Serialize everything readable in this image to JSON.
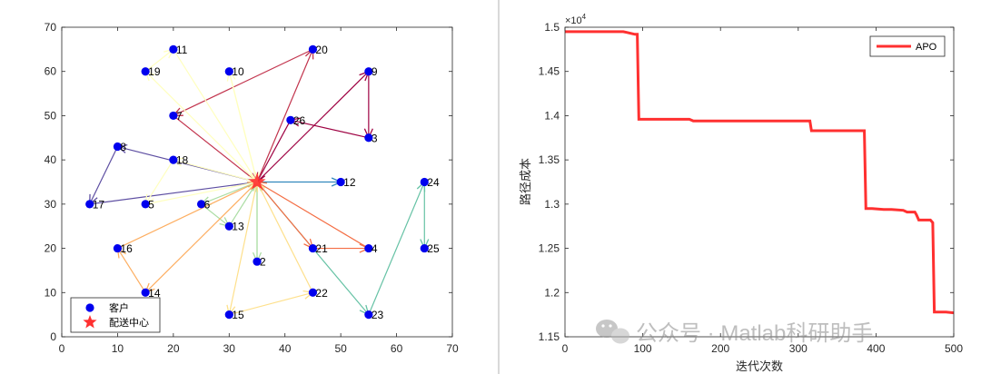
{
  "chart_data": [
    {
      "type": "scatter",
      "title": "",
      "xlim": [
        0,
        70
      ],
      "ylim": [
        0,
        70
      ],
      "xticks": [
        0,
        10,
        20,
        30,
        40,
        50,
        60,
        70
      ],
      "yticks": [
        0,
        10,
        20,
        30,
        40,
        50,
        60,
        70
      ],
      "grid": false,
      "legend": {
        "placement": "bottom-left",
        "customer": "客户",
        "depot": "配送中心"
      },
      "depot": {
        "x": 35,
        "y": 35
      },
      "customers": [
        {
          "id": "2",
          "x": 35,
          "y": 17
        },
        {
          "id": "3",
          "x": 55,
          "y": 45
        },
        {
          "id": "4",
          "x": 55,
          "y": 20
        },
        {
          "id": "5",
          "x": 15,
          "y": 30
        },
        {
          "id": "6",
          "x": 25,
          "y": 30
        },
        {
          "id": "7",
          "x": 20,
          "y": 50
        },
        {
          "id": "8",
          "x": 10,
          "y": 43
        },
        {
          "id": "9",
          "x": 55,
          "y": 60
        },
        {
          "id": "10",
          "x": 30,
          "y": 60
        },
        {
          "id": "11",
          "x": 20,
          "y": 65
        },
        {
          "id": "12",
          "x": 50,
          "y": 35
        },
        {
          "id": "13",
          "x": 30,
          "y": 25
        },
        {
          "id": "14",
          "x": 15,
          "y": 10
        },
        {
          "id": "15",
          "x": 30,
          "y": 5
        },
        {
          "id": "16",
          "x": 10,
          "y": 20
        },
        {
          "id": "17",
          "x": 5,
          "y": 30
        },
        {
          "id": "18",
          "x": 20,
          "y": 40
        },
        {
          "id": "19",
          "x": 15,
          "y": 60
        },
        {
          "id": "20",
          "x": 45,
          "y": 65
        },
        {
          "id": "21",
          "x": 45,
          "y": 20
        },
        {
          "id": "22",
          "x": 45,
          "y": 10
        },
        {
          "id": "23",
          "x": 55,
          "y": 5
        },
        {
          "id": "24",
          "x": 65,
          "y": 35
        },
        {
          "id": "25",
          "x": 65,
          "y": 20
        },
        {
          "id": "26",
          "x": 41,
          "y": 49
        }
      ],
      "routes": [
        {
          "color": "#9e0142",
          "path": [
            [
              35,
              35
            ],
            [
              55,
              60
            ],
            [
              55,
              45
            ],
            [
              41,
              49
            ],
            [
              35,
              35
            ]
          ]
        },
        {
          "color": "#c2344d",
          "path": [
            [
              35,
              35
            ],
            [
              45,
              65
            ],
            [
              20,
              50
            ],
            [
              35,
              35
            ]
          ]
        },
        {
          "color": "#5e4fa2",
          "path": [
            [
              35,
              35
            ],
            [
              10,
              43
            ],
            [
              5,
              30
            ],
            [
              35,
              35
            ]
          ]
        },
        {
          "color": "#3288bd",
          "path": [
            [
              35,
              35
            ],
            [
              50,
              35
            ]
          ]
        },
        {
          "color": "#66c2a5",
          "path": [
            [
              35,
              35
            ],
            [
              55,
              5
            ],
            [
              65,
              35
            ],
            [
              65,
              20
            ]
          ]
        },
        {
          "color": "#abdda4",
          "path": [
            [
              35,
              35
            ],
            [
              35,
              17
            ],
            [
              35,
              35
            ]
          ]
        },
        {
          "color": "#abdda4",
          "path": [
            [
              35,
              35
            ],
            [
              25,
              30
            ],
            [
              30,
              25
            ],
            [
              35,
              35
            ]
          ]
        },
        {
          "color": "#f46d43",
          "path": [
            [
              35,
              35
            ],
            [
              45,
              20
            ],
            [
              55,
              20
            ],
            [
              35,
              35
            ]
          ]
        },
        {
          "color": "#fdae61",
          "path": [
            [
              35,
              35
            ],
            [
              15,
              10
            ],
            [
              10,
              20
            ],
            [
              35,
              35
            ]
          ]
        },
        {
          "color": "#fee08b",
          "path": [
            [
              35,
              35
            ],
            [
              30,
              5
            ],
            [
              45,
              10
            ],
            [
              35,
              35
            ]
          ]
        },
        {
          "color": "#ffffbf",
          "path": [
            [
              35,
              35
            ],
            [
              15,
              60
            ],
            [
              20,
              65
            ],
            [
              35,
              35
            ]
          ]
        },
        {
          "color": "#ffffbf",
          "path": [
            [
              35,
              35
            ],
            [
              30,
              60
            ],
            [
              35,
              35
            ]
          ]
        },
        {
          "color": "#ffffbf",
          "path": [
            [
              35,
              35
            ],
            [
              20,
              40
            ],
            [
              15,
              30
            ],
            [
              35,
              35
            ]
          ]
        }
      ]
    },
    {
      "type": "line",
      "xlabel": "迭代次数",
      "ylabel": "路径成本",
      "exponent": "×10",
      "exponent_power": "4",
      "xlim": [
        0,
        500
      ],
      "ylim": [
        1.15,
        1.5
      ],
      "xticks": [
        "0",
        "100",
        "200",
        "300",
        "400",
        "500"
      ],
      "yticks": [
        "1.15",
        "1.2",
        "1.25",
        "1.3",
        "1.35",
        "1.4",
        "1.45",
        "1.5"
      ],
      "grid": false,
      "legend_placement": "top-right",
      "series": [
        {
          "name": "APO",
          "color": "#ff3030",
          "x": [
            0,
            75,
            80,
            85,
            90,
            93,
            95,
            100,
            160,
            165,
            315,
            317,
            385,
            387,
            395,
            410,
            420,
            435,
            440,
            450,
            452,
            455,
            470,
            473,
            475,
            490,
            500
          ],
          "y": [
            1.495,
            1.495,
            1.494,
            1.493,
            1.492,
            1.492,
            1.396,
            1.396,
            1.396,
            1.394,
            1.394,
            1.383,
            1.383,
            1.295,
            1.295,
            1.294,
            1.294,
            1.293,
            1.291,
            1.291,
            1.288,
            1.282,
            1.282,
            1.279,
            1.178,
            1.178,
            1.177
          ]
        }
      ]
    }
  ],
  "watermark": "公众号 · Matlab科研助手"
}
